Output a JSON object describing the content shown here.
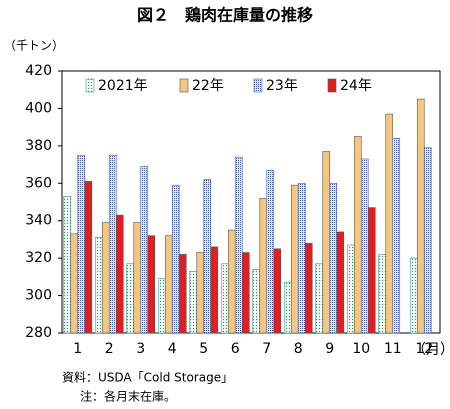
{
  "chart_data": {
    "type": "bar",
    "title": "図２　鶏肉在庫量の推移",
    "y_unit": "（千トン）",
    "x_unit": "（月）",
    "source": "資料：USDA「Cold Storage」",
    "note": "注：各月末在庫。",
    "categories": [
      "1",
      "2",
      "3",
      "4",
      "5",
      "6",
      "7",
      "8",
      "9",
      "10",
      "11",
      "12"
    ],
    "series": [
      {
        "name": "2021年",
        "color": "#3a9a7a",
        "values": [
          353,
          331,
          317,
          309,
          313,
          317,
          314,
          307,
          317,
          327,
          322,
          320
        ]
      },
      {
        "name": "22年",
        "color": "#f5c77e",
        "values": [
          333,
          339,
          339,
          332,
          323,
          335,
          352,
          359,
          377,
          385,
          397,
          405
        ]
      },
      {
        "name": "23年",
        "color": "#4a5fb0",
        "values": [
          375,
          375,
          369,
          359,
          362,
          374,
          367,
          360,
          360,
          373,
          384,
          379
        ]
      },
      {
        "name": "24年",
        "color": "#e02020",
        "values": [
          361,
          343,
          332,
          322,
          326,
          323,
          325,
          328,
          334,
          347,
          null,
          null
        ]
      }
    ],
    "ylim": [
      280,
      420
    ],
    "yticks": [
      280,
      300,
      320,
      340,
      360,
      380,
      400,
      420
    ],
    "legend": "top"
  }
}
